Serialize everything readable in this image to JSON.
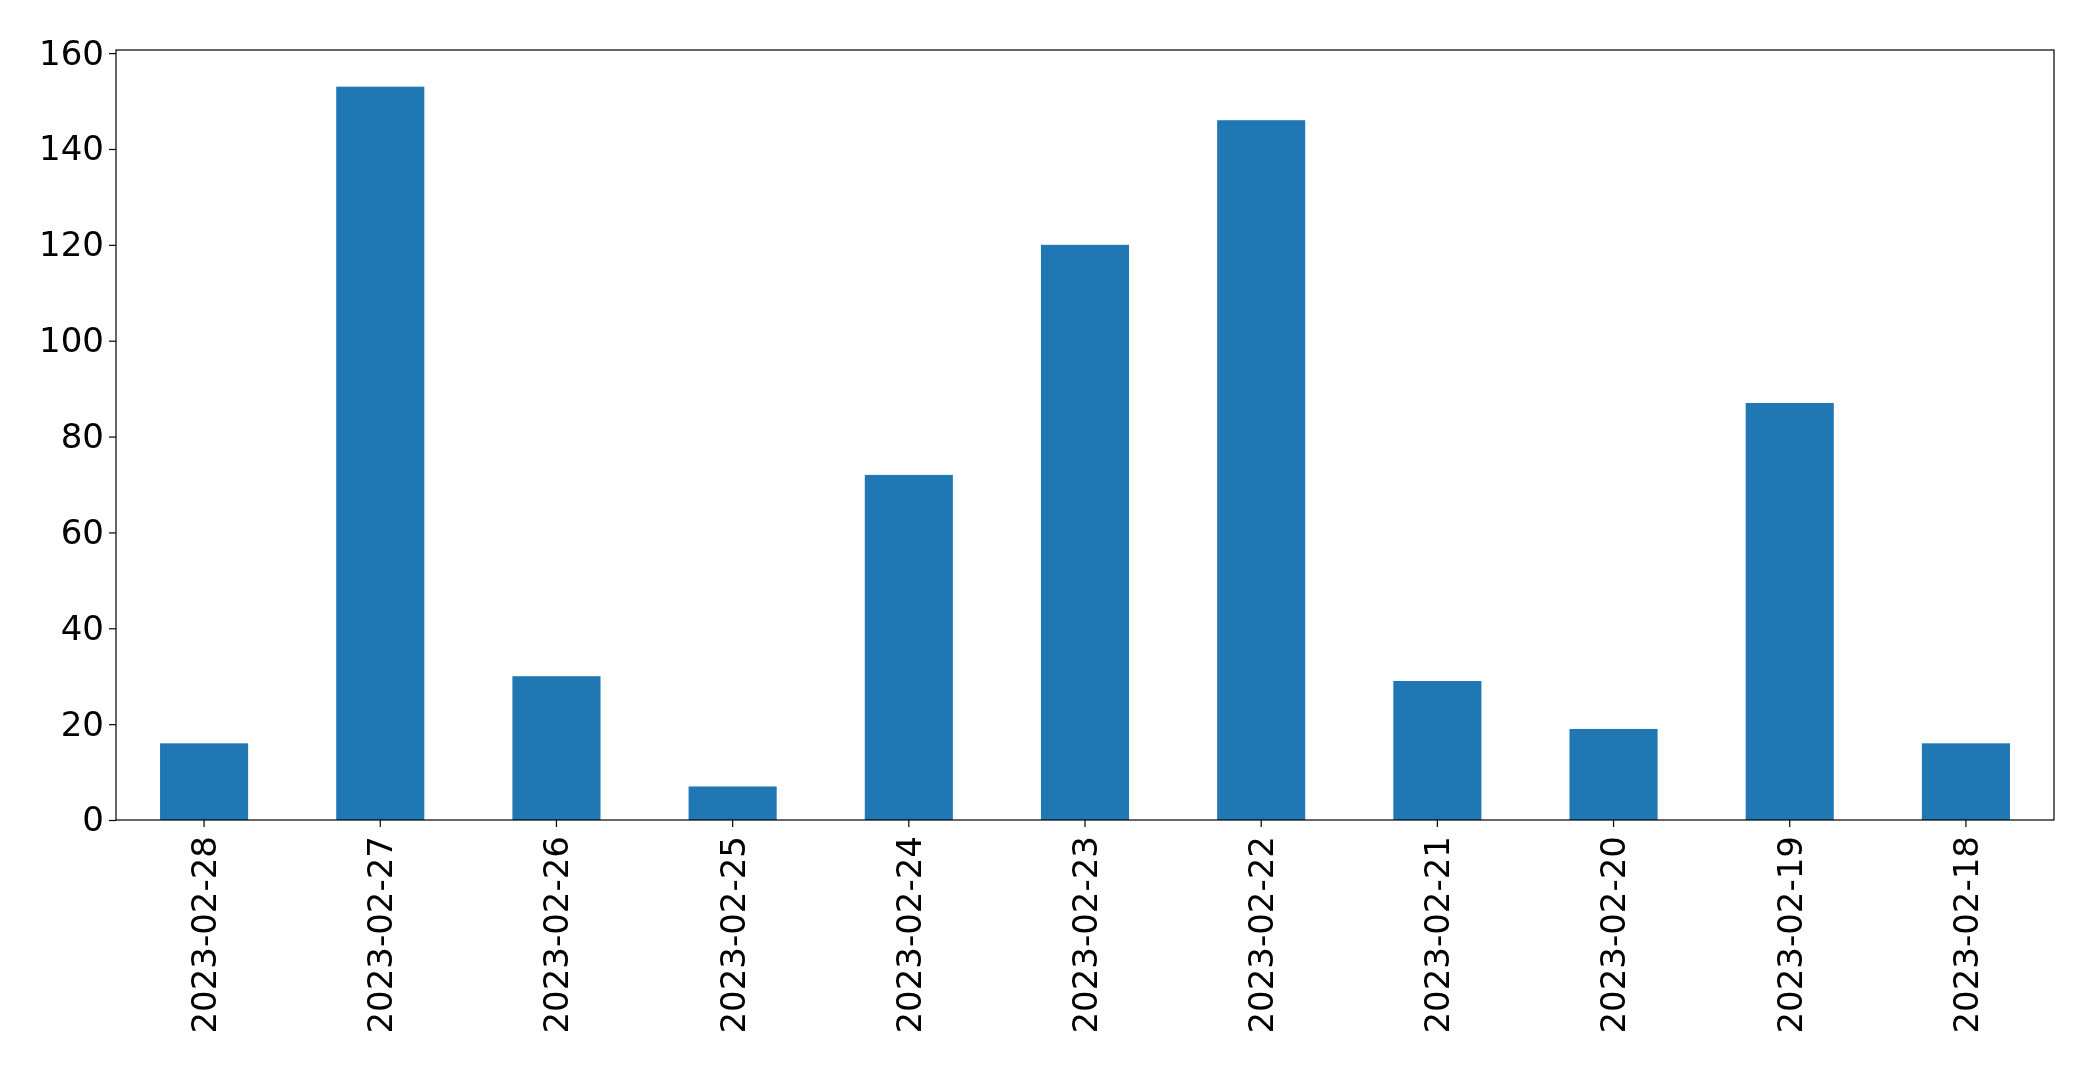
{
  "chart_data": {
    "type": "bar",
    "categories": [
      "2023-02-28",
      "2023-02-27",
      "2023-02-26",
      "2023-02-25",
      "2023-02-24",
      "2023-02-23",
      "2023-02-22",
      "2023-02-21",
      "2023-02-20",
      "2023-02-19",
      "2023-02-18"
    ],
    "values": [
      16,
      153,
      30,
      7,
      72,
      120,
      146,
      29,
      19,
      87,
      16
    ],
    "color": "#1f77b4",
    "ylim": [
      0,
      160.65
    ],
    "yticks": [
      0,
      20,
      40,
      60,
      80,
      100,
      120,
      140,
      160
    ]
  }
}
